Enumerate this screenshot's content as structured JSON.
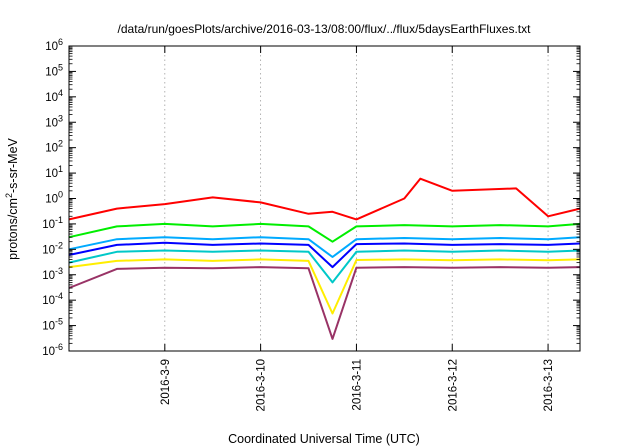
{
  "chart_data": {
    "type": "line",
    "title": "/data/run/goesPlots/archive/2016-03-13/08:00/flux/../flux/5daysEarthFluxes.txt",
    "xlabel": "Coordinated Universal Time (UTC)",
    "ylabel": "protons/cm2-s-sr-MeV",
    "ylabel_parts": {
      "pre": "protons/cm",
      "sup": "2",
      "post": "-s-sr-MeV"
    },
    "yscale": "log",
    "ylim": [
      1e-06,
      1000000.0
    ],
    "xlim": [
      "2016-03-08 00:00",
      "2016-03-13 08:00"
    ],
    "grid": true,
    "x_ticks": [
      "2016-3-9",
      "2016-3-10",
      "2016-3-11",
      "2016-3-12",
      "2016-3-13"
    ],
    "y_ticks": [
      {
        "base": "10",
        "exp": "-6",
        "value": 1e-06
      },
      {
        "base": "10",
        "exp": "-5",
        "value": 1e-05
      },
      {
        "base": "10",
        "exp": "-4",
        "value": 0.0001
      },
      {
        "base": "10",
        "exp": "-3",
        "value": 0.001
      },
      {
        "base": "10",
        "exp": "-2",
        "value": 0.01
      },
      {
        "base": "10",
        "exp": "-1",
        "value": 0.1
      },
      {
        "base": "10",
        "exp": "0",
        "value": 1
      },
      {
        "base": "10",
        "exp": "1",
        "value": 10
      },
      {
        "base": "10",
        "exp": "2",
        "value": 100
      },
      {
        "base": "10",
        "exp": "3",
        "value": 1000
      },
      {
        "base": "10",
        "exp": "4",
        "value": 10000
      },
      {
        "base": "10",
        "exp": "5",
        "value": 100000
      },
      {
        "base": "10",
        "exp": "6",
        "value": 1000000
      }
    ],
    "series": [
      {
        "color": "#ff0000",
        "x": [
          "2016-03-08 00:00",
          "2016-03-08 12:00",
          "2016-03-09 00:00",
          "2016-03-09 12:00",
          "2016-03-10 00:00",
          "2016-03-10 12:00",
          "2016-03-10 18:00",
          "2016-03-11 00:00",
          "2016-03-11 12:00",
          "2016-03-11 16:00",
          "2016-03-12 00:00",
          "2016-03-12 16:00",
          "2016-03-13 00:00",
          "2016-03-13 08:00"
        ],
        "y": [
          0.15,
          0.4,
          0.6,
          1.1,
          0.7,
          0.25,
          0.3,
          0.15,
          1.0,
          6.0,
          2.0,
          2.5,
          0.2,
          0.4
        ]
      },
      {
        "color": "#00ee00",
        "x": [
          "2016-03-08 00:00",
          "2016-03-08 12:00",
          "2016-03-09 00:00",
          "2016-03-09 12:00",
          "2016-03-10 00:00",
          "2016-03-10 12:00",
          "2016-03-10 18:00",
          "2016-03-11 00:00",
          "2016-03-11 12:00",
          "2016-03-12 00:00",
          "2016-03-12 12:00",
          "2016-03-13 00:00",
          "2016-03-13 08:00"
        ],
        "y": [
          0.03,
          0.08,
          0.1,
          0.08,
          0.1,
          0.08,
          0.02,
          0.08,
          0.09,
          0.08,
          0.09,
          0.08,
          0.1
        ]
      },
      {
        "color": "#00aaff",
        "x": [
          "2016-03-08 00:00",
          "2016-03-08 12:00",
          "2016-03-09 00:00",
          "2016-03-09 12:00",
          "2016-03-10 00:00",
          "2016-03-10 12:00",
          "2016-03-10 18:00",
          "2016-03-11 00:00",
          "2016-03-11 12:00",
          "2016-03-12 00:00",
          "2016-03-12 12:00",
          "2016-03-13 00:00",
          "2016-03-13 08:00"
        ],
        "y": [
          0.01,
          0.025,
          0.03,
          0.025,
          0.03,
          0.025,
          0.005,
          0.025,
          0.028,
          0.025,
          0.028,
          0.025,
          0.03
        ]
      },
      {
        "color": "#0000ff",
        "x": [
          "2016-03-08 00:00",
          "2016-03-08 12:00",
          "2016-03-09 00:00",
          "2016-03-09 12:00",
          "2016-03-10 00:00",
          "2016-03-10 12:00",
          "2016-03-10 18:00",
          "2016-03-11 00:00",
          "2016-03-11 12:00",
          "2016-03-12 00:00",
          "2016-03-12 12:00",
          "2016-03-13 00:00",
          "2016-03-13 08:00"
        ],
        "y": [
          0.006,
          0.015,
          0.018,
          0.015,
          0.017,
          0.015,
          0.002,
          0.016,
          0.017,
          0.015,
          0.016,
          0.015,
          0.017
        ]
      },
      {
        "color": "#00c8c8",
        "x": [
          "2016-03-08 00:00",
          "2016-03-08 12:00",
          "2016-03-09 00:00",
          "2016-03-09 12:00",
          "2016-03-10 00:00",
          "2016-03-10 12:00",
          "2016-03-10 18:00",
          "2016-03-11 00:00",
          "2016-03-11 12:00",
          "2016-03-12 00:00",
          "2016-03-12 12:00",
          "2016-03-13 00:00",
          "2016-03-13 08:00"
        ],
        "y": [
          0.003,
          0.008,
          0.009,
          0.008,
          0.009,
          0.008,
          0.0005,
          0.008,
          0.009,
          0.008,
          0.009,
          0.008,
          0.009
        ]
      },
      {
        "color": "#ffee00",
        "x": [
          "2016-03-08 00:00",
          "2016-03-08 12:00",
          "2016-03-09 00:00",
          "2016-03-09 12:00",
          "2016-03-10 00:00",
          "2016-03-10 12:00",
          "2016-03-10 18:00",
          "2016-03-11 00:00",
          "2016-03-11 12:00",
          "2016-03-12 00:00",
          "2016-03-12 12:00",
          "2016-03-13 00:00",
          "2016-03-13 08:00"
        ],
        "y": [
          0.002,
          0.0035,
          0.004,
          0.0035,
          0.004,
          0.0035,
          3e-05,
          0.0038,
          0.004,
          0.0037,
          0.004,
          0.0037,
          0.004
        ]
      },
      {
        "color": "#993366",
        "x": [
          "2016-03-08 00:00",
          "2016-03-08 12:00",
          "2016-03-09 00:00",
          "2016-03-09 12:00",
          "2016-03-10 00:00",
          "2016-03-10 12:00",
          "2016-03-10 18:00",
          "2016-03-11 00:00",
          "2016-03-11 12:00",
          "2016-03-12 00:00",
          "2016-03-12 12:00",
          "2016-03-13 00:00",
          "2016-03-13 08:00"
        ],
        "y": [
          0.0003,
          0.0017,
          0.0019,
          0.0018,
          0.002,
          0.0018,
          3e-06,
          0.0019,
          0.002,
          0.0019,
          0.002,
          0.0019,
          0.002
        ]
      }
    ]
  }
}
